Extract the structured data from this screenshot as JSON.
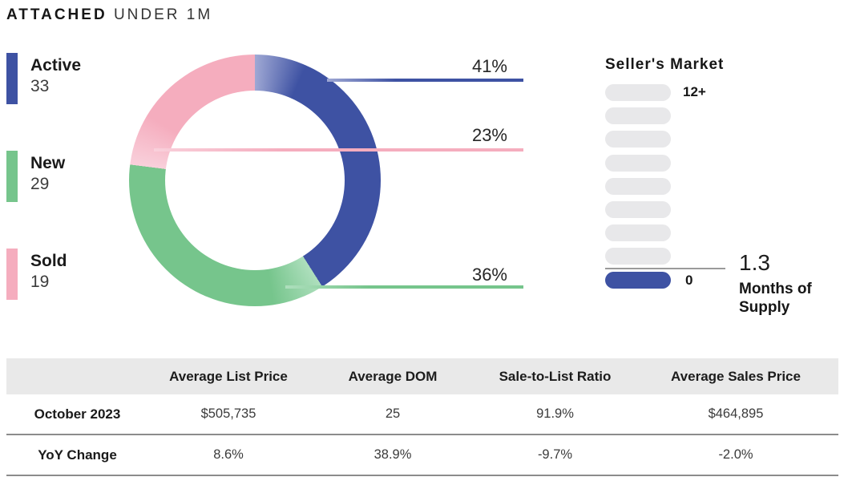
{
  "title": {
    "bold": "ATTACHED",
    "regular": "UNDER 1M"
  },
  "chart_data": {
    "type": "pie",
    "donut": true,
    "title": "ATTACHED UNDER 1M",
    "categories": [
      "Active",
      "New",
      "Sold"
    ],
    "values": [
      33,
      29,
      19
    ],
    "percentages": [
      41,
      36,
      23
    ],
    "colors": [
      "#3E52A3",
      "#76C58C",
      "#F5ADBE"
    ],
    "colors_light": [
      "#9FA8D4",
      "#AEDFBD",
      "#F9D0DB"
    ],
    "callouts": [
      {
        "text": "41%",
        "series": 0
      },
      {
        "text": "23%",
        "series": 2
      },
      {
        "text": "36%",
        "series": 1
      }
    ],
    "legend_position": "left"
  },
  "gauge": {
    "title": "Seller's Market",
    "top_label": "12+",
    "bottom_label": "0",
    "value": "1.3",
    "value_label": "Months of Supply",
    "segments_total": 9,
    "segments_filled": 1,
    "fill_color": "#3E52A3",
    "empty_color": "#E8E8EA"
  },
  "table": {
    "columns": [
      "",
      "Average List Price",
      "Average DOM",
      "Sale-to-List Ratio",
      "Average Sales Price"
    ],
    "rows": [
      {
        "label": "October 2023",
        "values": [
          "$505,735",
          "25",
          "91.9%",
          "$464,895"
        ]
      },
      {
        "label": "YoY Change",
        "values": [
          "8.6%",
          "38.9%",
          "-9.7%",
          "-2.0%"
        ]
      }
    ]
  }
}
